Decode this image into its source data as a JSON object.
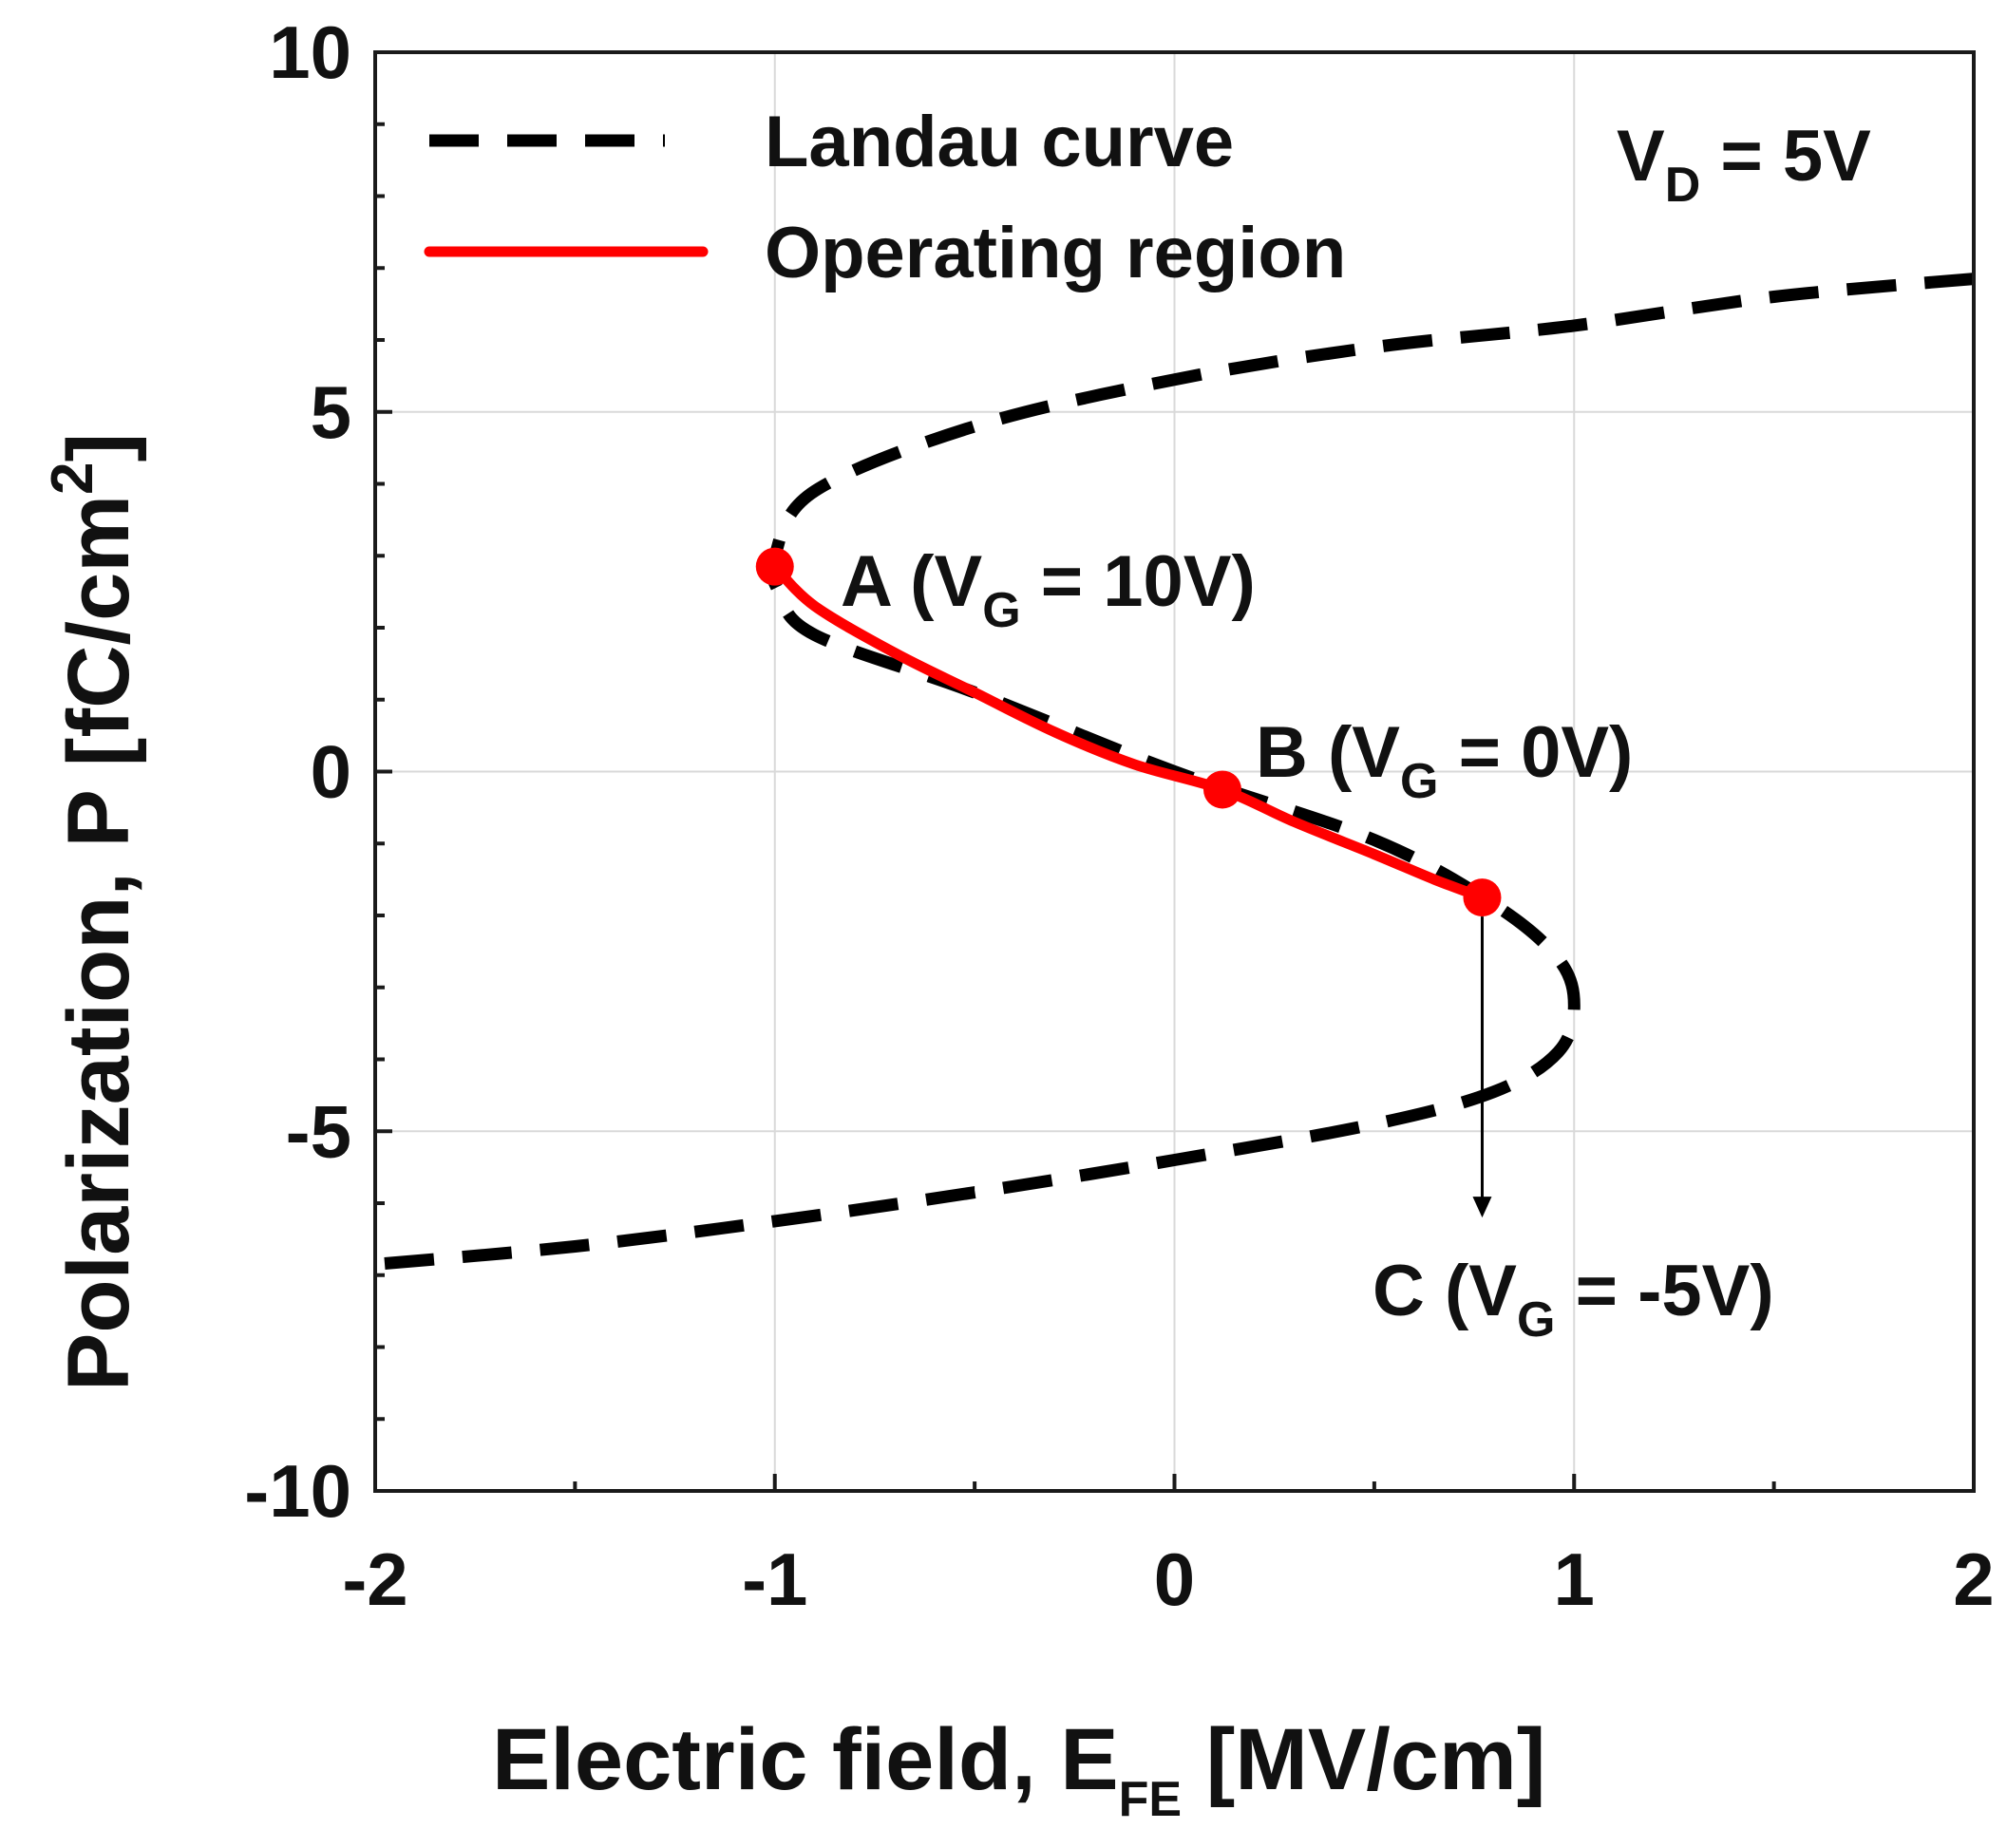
{
  "chart_data": {
    "type": "line",
    "title": "",
    "xlabel": {
      "main": "Electric field, E",
      "sub": "FE",
      "unit": " [MV/cm]"
    },
    "ylabel": {
      "main": "Polarization, P [fC/cm",
      "sup": "2",
      "close": "]"
    },
    "xlim": [
      -2,
      2
    ],
    "ylim": [
      -10,
      10
    ],
    "xticks": [
      -2,
      -1,
      0,
      1,
      2
    ],
    "yticks": [
      -10,
      -5,
      0,
      5,
      10
    ],
    "xtick_labels": [
      "-2",
      "-1",
      "0",
      "1",
      "2"
    ],
    "ytick_labels": [
      "-10",
      "-5",
      "0",
      "5",
      "10"
    ],
    "x_minor_step": 0.5,
    "y_minor_step": 1,
    "grid": true,
    "legend_position": "top-left",
    "series": [
      {
        "name": "Landau curve",
        "style": "dashed",
        "color": "#000000",
        "x": [
          2.0,
          1.5,
          1.0,
          0.5,
          0.0,
          -0.5,
          -0.9,
          -1.0,
          -0.99,
          -0.9,
          -0.5,
          0.0,
          0.5,
          0.8,
          0.96,
          1.0,
          0.96,
          0.8,
          0.5,
          0.0,
          -0.5,
          -1.0,
          -1.5,
          -2.0
        ],
        "y": [
          6.85,
          6.6,
          6.2,
          5.9,
          5.45,
          4.8,
          3.9,
          3.0,
          2.5,
          1.9,
          1.1,
          0.0,
          -0.95,
          -1.85,
          -2.6,
          -3.25,
          -3.9,
          -4.45,
          -4.9,
          -5.4,
          -5.85,
          -6.25,
          -6.6,
          -6.85
        ]
      },
      {
        "name": "Operating region",
        "style": "solid",
        "color": "#ff0000",
        "x": [
          -1.0,
          -0.9,
          -0.7,
          -0.5,
          -0.3,
          -0.1,
          0.12,
          0.3,
          0.5,
          0.65,
          0.77
        ],
        "y": [
          2.85,
          2.3,
          1.65,
          1.1,
          0.55,
          0.1,
          -0.25,
          -0.7,
          -1.15,
          -1.5,
          -1.75
        ]
      }
    ],
    "points": [
      {
        "name": "A",
        "x": -1.0,
        "y": 2.85,
        "prefix": "A (V",
        "sub": "G",
        "suffix": " = 10V)"
      },
      {
        "name": "B",
        "x": 0.12,
        "y": -0.25,
        "prefix": "B (V",
        "sub": "G",
        "suffix": " = 0V)"
      },
      {
        "name": "C-start",
        "x": 0.77,
        "y": -1.75
      }
    ],
    "annotations": [
      {
        "name": "C",
        "arrow_from": [
          0.77,
          -1.75
        ],
        "arrow_to": [
          0.77,
          -6.2
        ],
        "prefix": "C (V",
        "sub": "G",
        "suffix": " = -5V)"
      },
      {
        "name": "VD",
        "prefix": "V",
        "sub": "D",
        "suffix": " = 5V",
        "placement": "top-right"
      }
    ],
    "colors": {
      "axis": "#1a1a1a",
      "grid": "#d9d9d9",
      "landau": "#000000",
      "operating": "#ff0000"
    }
  }
}
